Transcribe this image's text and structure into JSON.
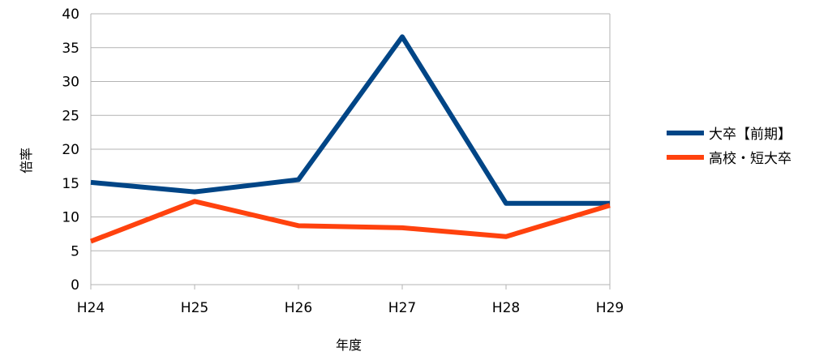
{
  "chart_data": {
    "type": "line",
    "xlabel": "年度",
    "ylabel": "倍率",
    "categories": [
      "H24",
      "H25",
      "H26",
      "H27",
      "H28",
      "H29"
    ],
    "ylim": [
      0,
      40
    ],
    "yticks": [
      0,
      5,
      10,
      15,
      20,
      25,
      30,
      35,
      40
    ],
    "grid": true,
    "legend_position": "right",
    "series": [
      {
        "name": "大卒【前期】",
        "color": "#004586",
        "values": [
          15.1,
          13.7,
          15.5,
          36.6,
          12.0,
          12.0
        ]
      },
      {
        "name": "高校・短大卒",
        "color": "#ff420e",
        "values": [
          6.4,
          12.3,
          8.7,
          8.4,
          7.1,
          11.7
        ]
      }
    ]
  }
}
